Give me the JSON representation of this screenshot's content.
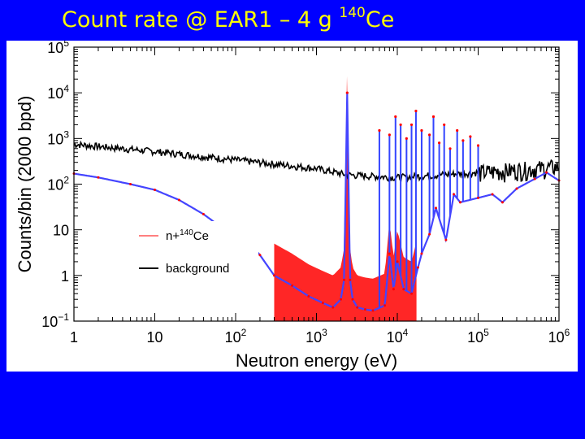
{
  "slide": {
    "title_prefix": "Count rate @ EAR1 – 4 g ",
    "title_sup": "140",
    "title_suffix": "Ce"
  },
  "chart_data": {
    "type": "line",
    "title": "",
    "xlabel": "Neutron energy (eV)",
    "ylabel": "Counts/bin (2000 bpd)",
    "xscale": "log",
    "yscale": "log",
    "xlim": [
      1,
      1000000
    ],
    "ylim": [
      0.1,
      100000
    ],
    "xticks": [
      {
        "v": 1,
        "b": "1",
        "e": ""
      },
      {
        "v": 10,
        "b": "10",
        "e": ""
      },
      {
        "v": 100,
        "b": "10",
        "e": "2"
      },
      {
        "v": 1000,
        "b": "10",
        "e": "3"
      },
      {
        "v": 10000,
        "b": "10",
        "e": "4"
      },
      {
        "v": 100000,
        "b": "10",
        "e": "5"
      },
      {
        "v": 1000000,
        "b": "10",
        "e": "6"
      }
    ],
    "yticks": [
      {
        "v": 0.1,
        "b": "10",
        "e": "−1"
      },
      {
        "v": 1,
        "b": "1",
        "e": ""
      },
      {
        "v": 10,
        "b": "10",
        "e": ""
      },
      {
        "v": 100,
        "b": "10",
        "e": "2"
      },
      {
        "v": 1000,
        "b": "10",
        "e": "3"
      },
      {
        "v": 10000,
        "b": "10",
        "e": "4"
      },
      {
        "v": 100000,
        "b": "10",
        "e": "5"
      }
    ],
    "grid": false,
    "legend_position": "center-left",
    "legend": [
      {
        "prefix": "n+",
        "sup": "140",
        "suffix": "Ce",
        "color": "#ff3333"
      },
      {
        "prefix": "background",
        "sup": "",
        "suffix": "",
        "color": "#000000"
      }
    ],
    "series": [
      {
        "name": "n+140Ce",
        "color": "#ff0000",
        "data_color": "#4444ff",
        "x": [
          1,
          2,
          5,
          10,
          20,
          40,
          60,
          150,
          200,
          300,
          500,
          800,
          1200,
          1600,
          2000,
          2200,
          2400,
          2600,
          2800,
          3200,
          4000,
          5000,
          7000,
          8000,
          9000,
          10000,
          12000,
          15000,
          18000,
          20000,
          25000,
          30000,
          40000,
          50000,
          60000,
          100000,
          150000,
          200000,
          300000,
          500000,
          700000,
          1000000
        ],
        "y": [
          170,
          140,
          100,
          75,
          45,
          22,
          13,
          5,
          2.8,
          1.0,
          0.6,
          0.35,
          0.25,
          0.2,
          0.3,
          0.8,
          10000,
          0.8,
          0.3,
          0.2,
          0.18,
          0.17,
          0.22,
          3,
          0.5,
          2,
          0.5,
          0.4,
          1.5,
          3,
          8,
          30,
          6,
          60,
          40,
          50,
          60,
          40,
          80,
          130,
          180,
          120
        ],
        "peaks": [
          {
            "x": 2400,
            "y": 10000
          },
          {
            "x": 6000,
            "y": 1500
          },
          {
            "x": 8000,
            "y": 1200
          },
          {
            "x": 9500,
            "y": 3000
          },
          {
            "x": 11000,
            "y": 2000
          },
          {
            "x": 13000,
            "y": 1000
          },
          {
            "x": 15000,
            "y": 2000
          },
          {
            "x": 17000,
            "y": 4000
          },
          {
            "x": 20000,
            "y": 1500
          },
          {
            "x": 25000,
            "y": 1200
          },
          {
            "x": 28000,
            "y": 3000
          },
          {
            "x": 33000,
            "y": 800
          },
          {
            "x": 38000,
            "y": 2000
          },
          {
            "x": 45000,
            "y": 600
          },
          {
            "x": 55000,
            "y": 1500
          },
          {
            "x": 65000,
            "y": 900
          },
          {
            "x": 80000,
            "y": 1100
          },
          {
            "x": 100000,
            "y": 700
          }
        ]
      },
      {
        "name": "background",
        "color": "#000000",
        "x": [
          1,
          10,
          100,
          1000,
          2400,
          10000,
          100000,
          1000000
        ],
        "y": [
          750,
          520,
          340,
          220,
          160,
          140,
          180,
          240
        ]
      }
    ]
  }
}
